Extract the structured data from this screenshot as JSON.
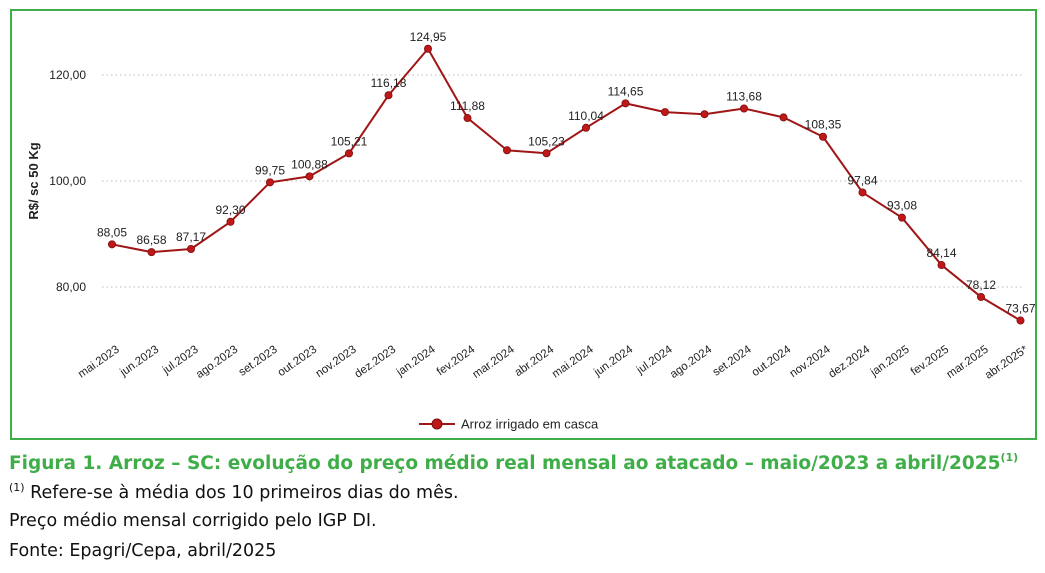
{
  "chart_data": {
    "type": "line",
    "ylabel": "R$/ sc 50 Kg",
    "ylim": [
      65,
      127
    ],
    "yticks": [
      80,
      100,
      120
    ],
    "ytick_labels": [
      "80,00",
      "100,00",
      "120,00"
    ],
    "grid": "horizontal-dotted",
    "legend_position": "bottom",
    "categories": [
      "mai.2023",
      "jun.2023",
      "jul.2023",
      "ago.2023",
      "set.2023",
      "out.2023",
      "nov.2023",
      "dez.2023",
      "jan.2024",
      "fev.2024",
      "mar.2024",
      "abr.2024",
      "mai.2024",
      "jun.2024",
      "jul.2024",
      "ago.2024",
      "set.2024",
      "out.2024",
      "nov.2024",
      "dez.2024",
      "jan.2025",
      "fev.2025",
      "mar.2025",
      "abr.2025*"
    ],
    "series": [
      {
        "name": "Arroz irrigado em casca",
        "color": "#a01515",
        "values": [
          88.05,
          86.58,
          87.17,
          92.3,
          99.75,
          100.88,
          105.21,
          116.18,
          124.95,
          111.88,
          105.8,
          105.23,
          110.04,
          114.65,
          113.0,
          112.6,
          113.68,
          112.0,
          108.35,
          97.84,
          93.08,
          84.14,
          78.12,
          73.67
        ],
        "data_labels": [
          "88,05",
          "86,58",
          "87,17",
          "92,30",
          "99,75",
          "100,88",
          "105,21",
          "116,18",
          "124,95",
          "111,88",
          "",
          "105,23",
          "110,04",
          "114,65",
          "",
          "",
          "113,68",
          "",
          "108,35",
          "97,84",
          "93,08",
          "84,14",
          "78,12",
          "73,67"
        ]
      }
    ]
  },
  "caption": {
    "title": "Figura 1. Arroz – SC: evolução do preço médio real mensal ao atacado – maio/2023 a abril/2025",
    "title_sup": "(1)",
    "note1_sup": "(1)",
    "note1": " Refere-se à média dos 10 primeiros dias do mês.",
    "note2": "Preço médio mensal corrigido pelo IGP DI.",
    "note3": "Fonte: Epagri/Cepa, abril/2025"
  },
  "colors": {
    "frame": "#3fae49",
    "title": "#3fae49",
    "line": "#a01515",
    "marker": "#c01818",
    "grid": "#bdbdbd"
  }
}
